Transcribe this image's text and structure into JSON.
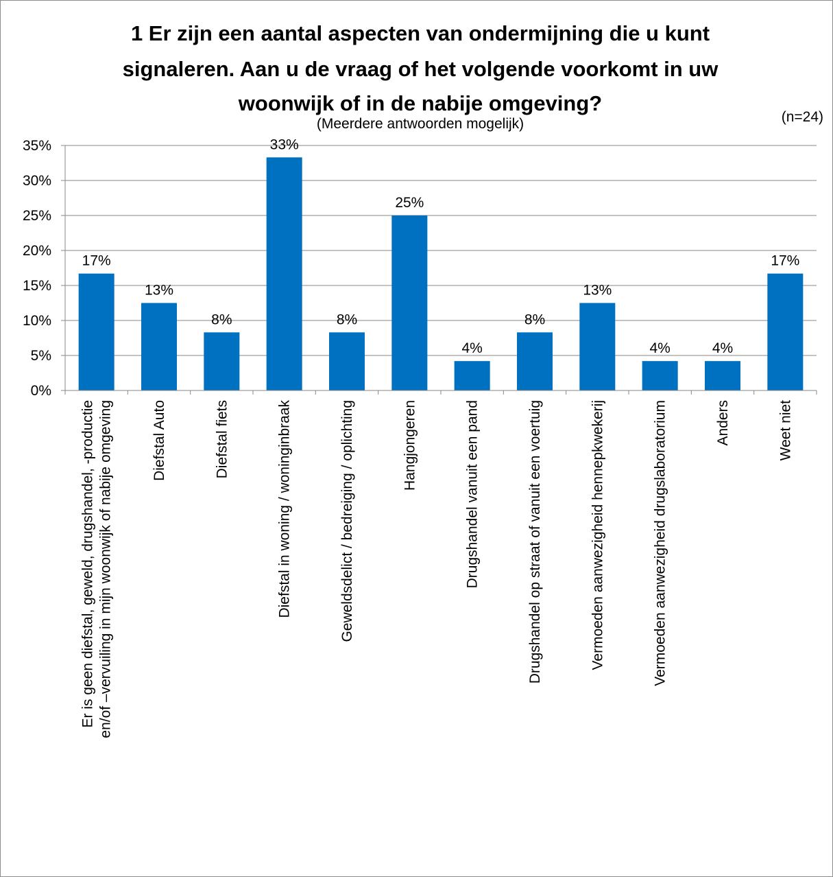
{
  "chart_data": {
    "type": "bar",
    "title_lines": [
      "1 Er zijn een aantal aspecten van ondermijning die u kunt",
      "signaleren. Aan u de vraag of het volgende voorkomt in uw",
      "woonwijk of in de nabije omgeving?"
    ],
    "subtitle": "(Meerdere antwoorden mogelijk)",
    "sample_note": "(n=24)",
    "bar_color": "#0070c0",
    "grid": true,
    "ylim": [
      0,
      35
    ],
    "yticks": [
      {
        "value": 0,
        "label": "0%"
      },
      {
        "value": 5,
        "label": "5%"
      },
      {
        "value": 10,
        "label": "10%"
      },
      {
        "value": 15,
        "label": "15%"
      },
      {
        "value": 20,
        "label": "20%"
      },
      {
        "value": 25,
        "label": "25%"
      },
      {
        "value": 30,
        "label": "30%"
      },
      {
        "value": 35,
        "label": "35%"
      }
    ],
    "categories": [
      [
        "Er is geen diefstal, geweld, drugshandel, -productie",
        "en/of –vervuiling in mijn woonwijk of nabije omgeving"
      ],
      [
        "Diefstal Auto"
      ],
      [
        "Diefstal fiets"
      ],
      [
        "Diefstal in woning / woninginbraak"
      ],
      [
        "Geweldsdelict / bedreiging / oplichting"
      ],
      [
        "Hangjongeren"
      ],
      [
        "Drugshandel vanuit een pand"
      ],
      [
        "Drugshandel op straat of vanuit een voertuig"
      ],
      [
        "Vermoeden aanwezigheid hennepkwekerij"
      ],
      [
        "Vermoeden aanwezigheid drugslaboratorium"
      ],
      [
        "Anders"
      ],
      [
        "Weet niet"
      ]
    ],
    "values": [
      16.7,
      12.5,
      8.3,
      33.3,
      8.3,
      25.0,
      4.2,
      8.3,
      12.5,
      4.2,
      4.2,
      16.7
    ],
    "data_labels": [
      "17%",
      "13%",
      "8%",
      "33%",
      "8%",
      "25%",
      "4%",
      "8%",
      "13%",
      "4%",
      "4%",
      "17%"
    ]
  }
}
